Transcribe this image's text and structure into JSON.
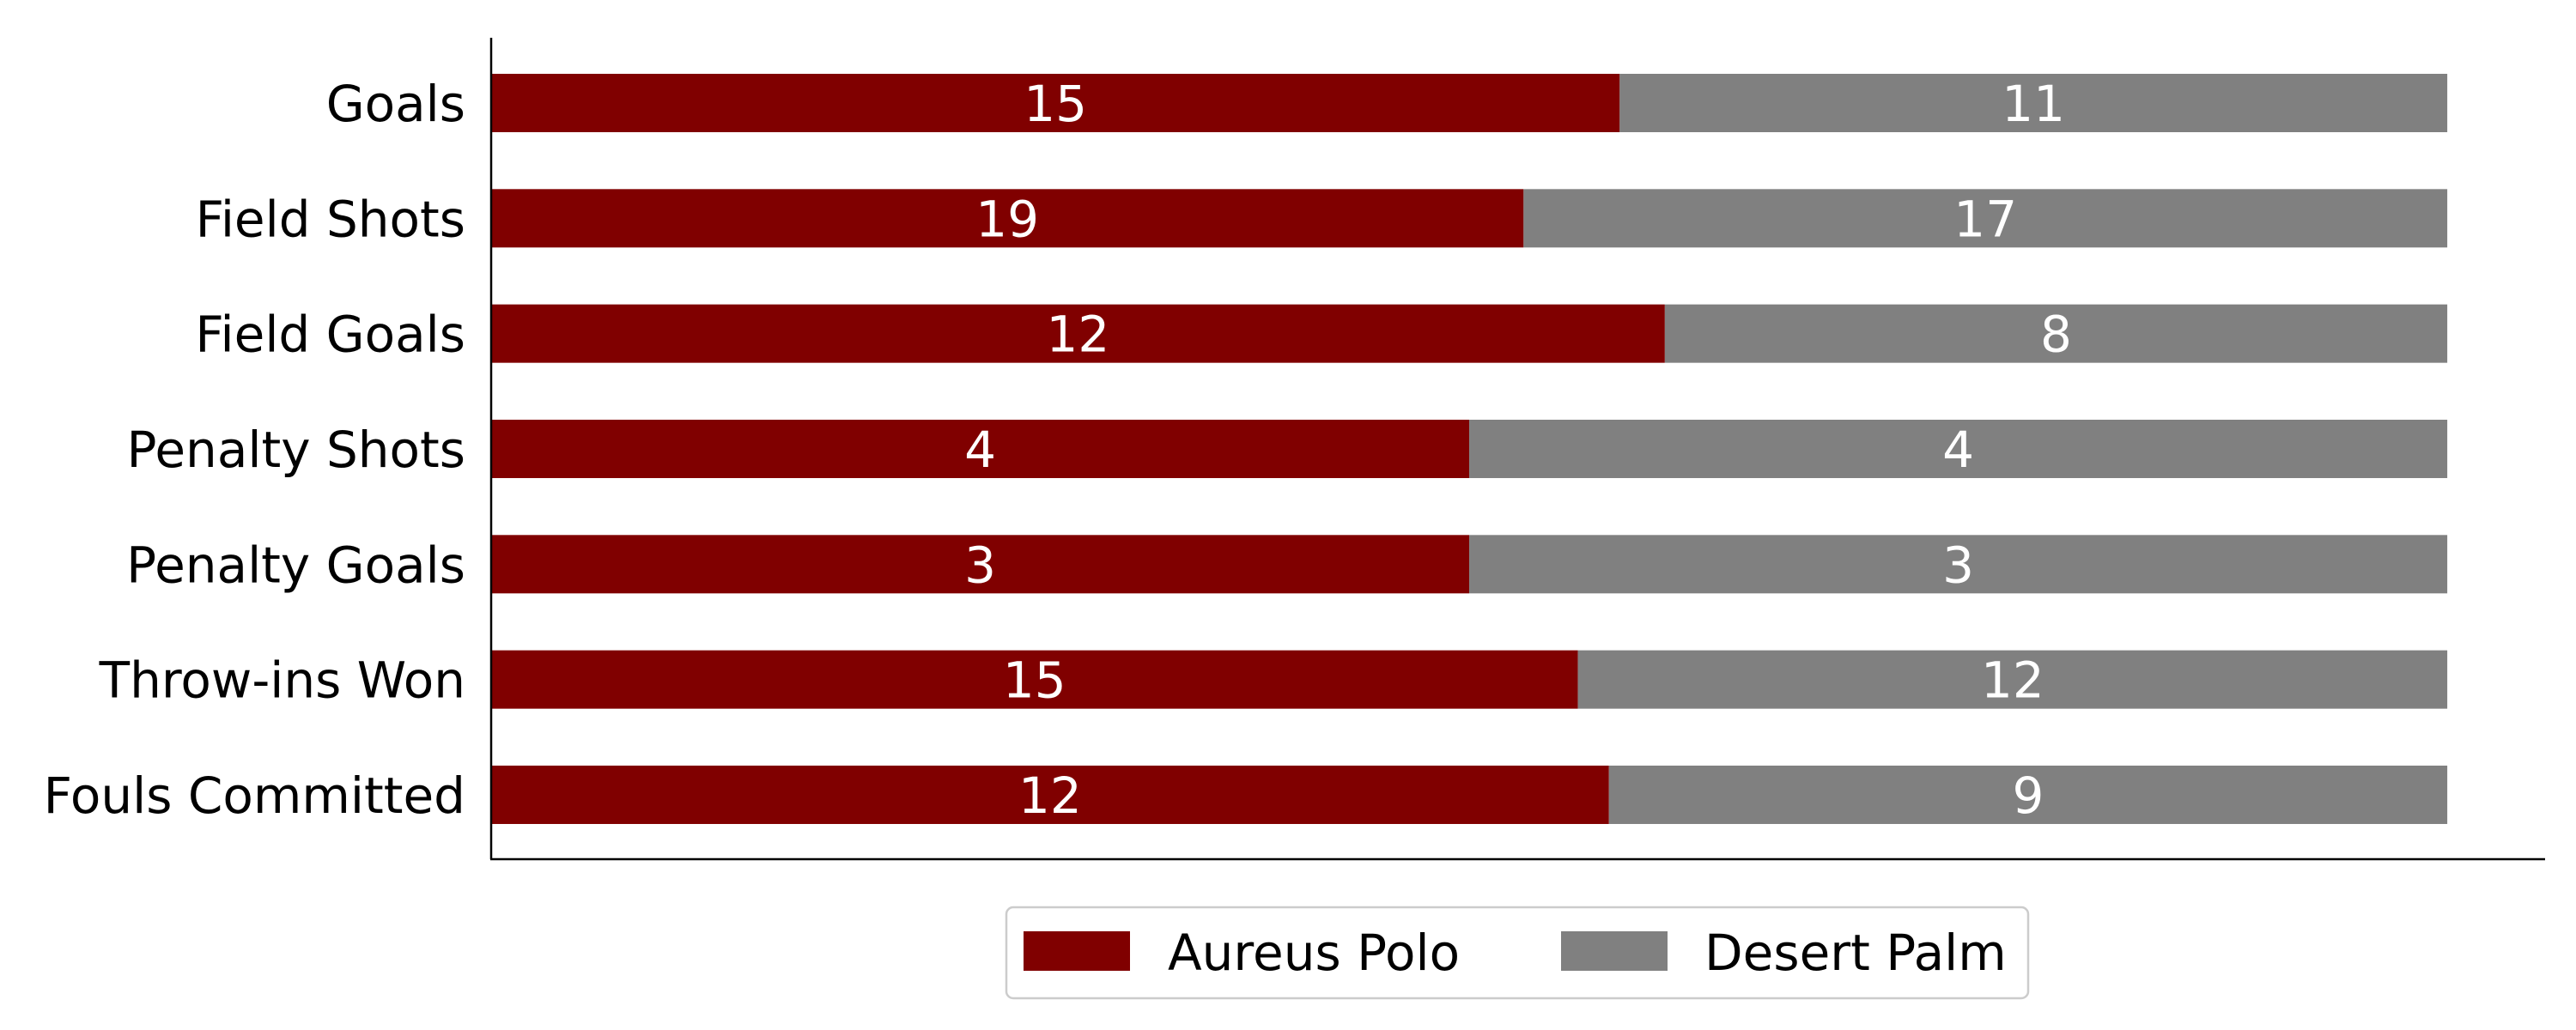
{
  "chart_data": {
    "type": "bar",
    "orientation": "horizontal",
    "stacked": true,
    "normalized": true,
    "categories": [
      "Goals",
      "Field Shots",
      "Field Goals",
      "Penalty Shots",
      "Penalty Goals",
      "Throw-ins Won",
      "Fouls Committed"
    ],
    "series": [
      {
        "name": "Aureus Polo",
        "values": [
          15,
          19,
          12,
          4,
          3,
          15,
          12
        ],
        "color": "#800000"
      },
      {
        "name": "Desert Palm",
        "values": [
          11,
          17,
          8,
          4,
          3,
          12,
          9
        ],
        "color": "#808080"
      }
    ],
    "title": "",
    "xlabel": "",
    "ylabel": "",
    "xlim": [
      0,
      1.05
    ],
    "grid": false,
    "legend_position": "bottom-center"
  }
}
